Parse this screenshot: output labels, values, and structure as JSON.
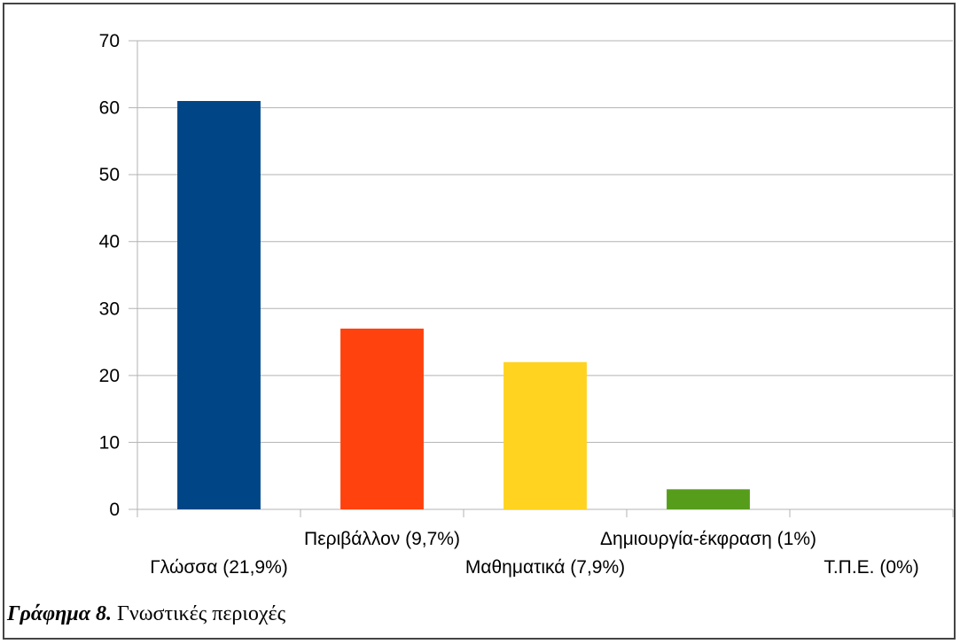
{
  "chart_data": {
    "type": "bar",
    "categories": [
      "Γλώσσα (21,9%)",
      "Περιβάλλον (9,7%)",
      "Μαθηματικά (7,9%)",
      "Δημιουργία-έκφραση (1%)",
      "Τ.Π.Ε. (0%)"
    ],
    "values": [
      61,
      27,
      22,
      3,
      0
    ],
    "colors": [
      "#004586",
      "#ff420e",
      "#ffd320",
      "#579d1c",
      "#7e0021"
    ],
    "title": "",
    "xlabel": "",
    "ylabel": "",
    "ylim": [
      0,
      70
    ],
    "yticks": [
      0,
      10,
      20,
      30,
      40,
      50,
      60,
      70
    ],
    "grid": true,
    "legend": "none"
  },
  "caption": {
    "prefix": "Γράφημα 8.",
    "text": " Γνωστικές περιοχές"
  }
}
